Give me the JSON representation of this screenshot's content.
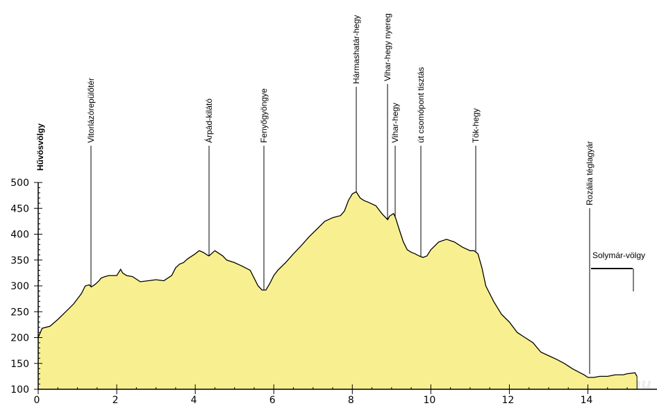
{
  "chart_data": {
    "type": "area",
    "title": "",
    "xlabel": "",
    "ylabel": "",
    "xlim": [
      0,
      15.3
    ],
    "ylim": [
      100,
      500
    ],
    "xticks": [
      0,
      2,
      4,
      6,
      8,
      10,
      12,
      14
    ],
    "yticks": [
      100,
      150,
      200,
      250,
      300,
      350,
      400,
      450,
      500
    ],
    "fill_color": "#f8f090",
    "line_color": "#000000",
    "grid": false,
    "x": [
      0,
      0.1,
      0.3,
      0.5,
      0.7,
      0.9,
      1.1,
      1.2,
      1.3,
      1.35,
      1.45,
      1.55,
      1.6,
      1.7,
      1.8,
      2.0,
      2.1,
      2.15,
      2.25,
      2.4,
      2.6,
      2.8,
      3.0,
      3.2,
      3.4,
      3.5,
      3.6,
      3.7,
      3.8,
      4.0,
      4.1,
      4.2,
      4.3,
      4.35,
      4.5,
      4.7,
      4.8,
      5.0,
      5.2,
      5.4,
      5.5,
      5.6,
      5.7,
      5.8,
      5.9,
      6.0,
      6.1,
      6.3,
      6.5,
      6.7,
      6.9,
      7.1,
      7.3,
      7.5,
      7.7,
      7.8,
      7.9,
      8.0,
      8.1,
      8.2,
      8.3,
      8.4,
      8.6,
      8.75,
      8.9,
      8.95,
      9.05,
      9.1,
      9.2,
      9.3,
      9.4,
      9.5,
      9.6,
      9.7,
      9.8,
      9.9,
      10.0,
      10.2,
      10.4,
      10.6,
      10.8,
      11.0,
      11.1,
      11.2,
      11.3,
      11.4,
      11.6,
      11.8,
      12.0,
      12.2,
      12.4,
      12.6,
      12.8,
      13.0,
      13.2,
      13.4,
      13.6,
      13.8,
      13.9,
      14.0,
      14.05,
      14.15,
      14.3,
      14.5,
      14.7,
      14.9,
      15.0,
      15.2,
      15.25
    ],
    "y": [
      200,
      218,
      222,
      235,
      250,
      265,
      285,
      300,
      302,
      298,
      303,
      310,
      315,
      318,
      320,
      320,
      332,
      325,
      320,
      318,
      308,
      310,
      312,
      310,
      320,
      335,
      342,
      345,
      352,
      362,
      368,
      365,
      360,
      358,
      368,
      358,
      350,
      345,
      338,
      330,
      315,
      300,
      292,
      292,
      305,
      320,
      330,
      345,
      362,
      378,
      395,
      410,
      425,
      432,
      436,
      445,
      465,
      478,
      482,
      470,
      465,
      462,
      455,
      440,
      428,
      435,
      440,
      432,
      408,
      385,
      370,
      365,
      362,
      358,
      355,
      358,
      370,
      385,
      390,
      385,
      375,
      368,
      368,
      362,
      335,
      300,
      270,
      245,
      230,
      210,
      200,
      190,
      172,
      165,
      158,
      150,
      140,
      132,
      128,
      123,
      123,
      123,
      125,
      125,
      128,
      128,
      130,
      132,
      125
    ],
    "waypoints": [
      {
        "label": "Hűvösvölgy",
        "x": 0
      },
      {
        "label": "Vitorlázórepülőtér",
        "x": 1.35
      },
      {
        "label": "Árpád-kilátó",
        "x": 4.35
      },
      {
        "label": "Fenyőgyöngye",
        "x": 5.75
      },
      {
        "label": "Hármashatár-hegy",
        "x": 8.1
      },
      {
        "label": "Vihar-hegy nyereg",
        "x": 8.9
      },
      {
        "label": "Vihar-hegy",
        "x": 9.1
      },
      {
        "label": "út csomópont  tisztás",
        "x": 9.75
      },
      {
        "label": "Tök-hegy",
        "x": 11.15
      },
      {
        "label": "Rozália téglagyár",
        "x": 14.05
      },
      {
        "label": "Solymár-völgy",
        "x": 14.05,
        "x_end": 15.25
      }
    ],
    "watermark": "Hadidoki.ini.hu"
  }
}
